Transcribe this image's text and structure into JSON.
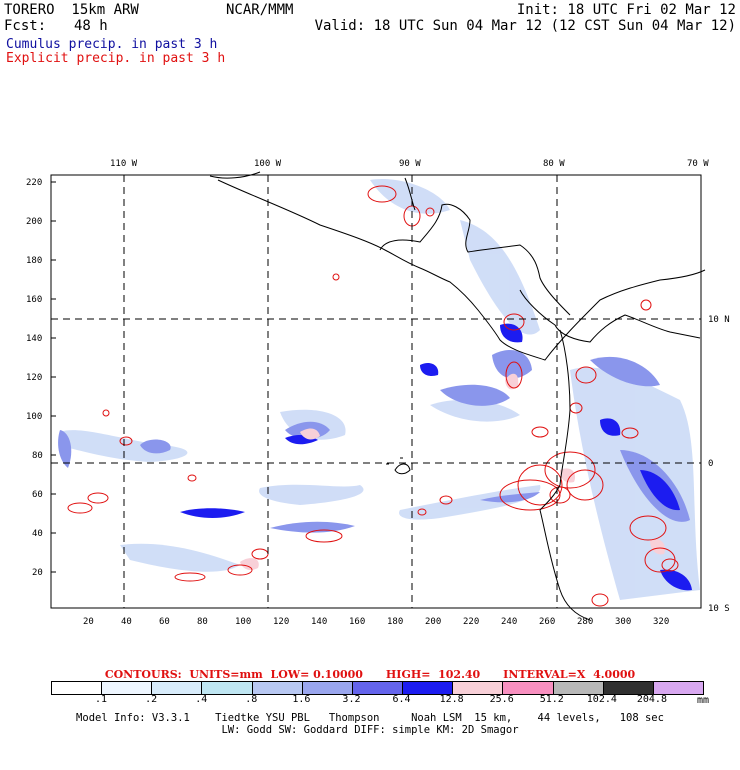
{
  "header": {
    "model": "TORERO  15km ARW",
    "center": "NCAR/MMM",
    "init": "Init: 18 UTC Fri 02 Mar 12",
    "fcst_label": "Fcst:",
    "fcst_value": "48 h",
    "valid": "Valid: 18 UTC Sun 04 Mar 12 (12 CST Sun 04 Mar 12)"
  },
  "legend": {
    "cumulus": "Cumulus precip. in past 3 h",
    "explicit": "Explicit precip. in past 3 h"
  },
  "map": {
    "top_lon_labels": [
      "110 W",
      "100 W",
      "90 W",
      "80 W",
      "70 W"
    ],
    "left_y_labels": [
      "220",
      "200",
      "180",
      "160",
      "140",
      "120",
      "100",
      "80",
      "60",
      "40",
      "20"
    ],
    "bottom_x_labels": [
      "20",
      "40",
      "60",
      "80",
      "100",
      "120",
      "140",
      "160",
      "180",
      "200",
      "220",
      "240",
      "260",
      "280",
      "300",
      "320"
    ],
    "right_lat_labels": [
      "10 N",
      "0",
      "10 S"
    ]
  },
  "contours": "CONTOURS:  UNITS=mm  LOW= 0.10000      HIGH=  102.40      INTERVAL=X  4.0000",
  "colorbar": {
    "colors": [
      "#ffffff",
      "#eef6ff",
      "#d8ecfb",
      "#bfe6f2",
      "#b8c8f2",
      "#9aa6ee",
      "#6464ec",
      "#1c1cf0",
      "#f8d0d8",
      "#f890c0",
      "#b8b8b8",
      "#303030",
      "#d8a8f0"
    ],
    "labels": [
      ".1",
      ".2",
      ".4",
      ".8",
      "1.6",
      "3.2",
      "6.4",
      "12.8",
      "25.6",
      "51.2",
      "102.4",
      "204.8"
    ],
    "unit": "mm"
  },
  "model_info": {
    "line1": "Model Info: V3.3.1    Tiedtke YSU PBL   Thompson     Noah LSM  15 km,    44 levels,   108 sec",
    "line2": "LW: Godd SW: Goddard DIFF: simple KM: 2D Smagor"
  }
}
